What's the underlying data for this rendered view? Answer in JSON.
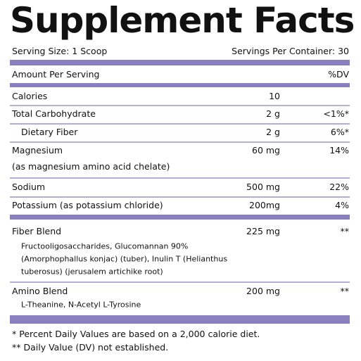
{
  "title": "Supplement Facts",
  "serving_size": "Serving Size: 1 Scoop",
  "servings_per_container": "Servings Per Container: 30",
  "header": {
    "amount": "Amount Per Serving",
    "dv": "%DV"
  },
  "rows": [
    {
      "name": "Calories",
      "amount": "10"
    },
    {
      "name": "Total Carbohydrate",
      "amount": "2 g",
      "dv": "<1%*"
    },
    {
      "name": "Dietary Fiber",
      "amount": "2 g",
      "dv": "6%*"
    },
    {
      "name": "Magnesium",
      "amount": "60 mg",
      "dv": "14%",
      "note": [
        "(as magnesium amino acid chelate)"
      ]
    },
    {
      "name": "Sodium",
      "amount": "500 mg",
      "dv": "22%"
    },
    {
      "name": "Potassium (as potassium chloride)",
      "amount": "200mg",
      "dv": "4%"
    },
    {
      "name": "Fiber Blend",
      "amount": "225 mg",
      "dv": "**",
      "note": [
        "Fructooligosaccharides, Glucomannan 90%",
        "(Amorphophallus konjac) (tuber), Inulin T (Helianthus",
        "tuberosus) (jerusalem artichike root)"
      ]
    },
    {
      "name": "Amino Blend",
      "amount": "200 mg",
      "dv": "**",
      "note": [
        "L-Theanine, N-Acetyl L-Tyrosine"
      ]
    }
  ],
  "footnotes": [
    "*  Percent Daily Values are based on a 2,000 calorie diet.",
    "** Daily Value (DV) not established."
  ]
}
